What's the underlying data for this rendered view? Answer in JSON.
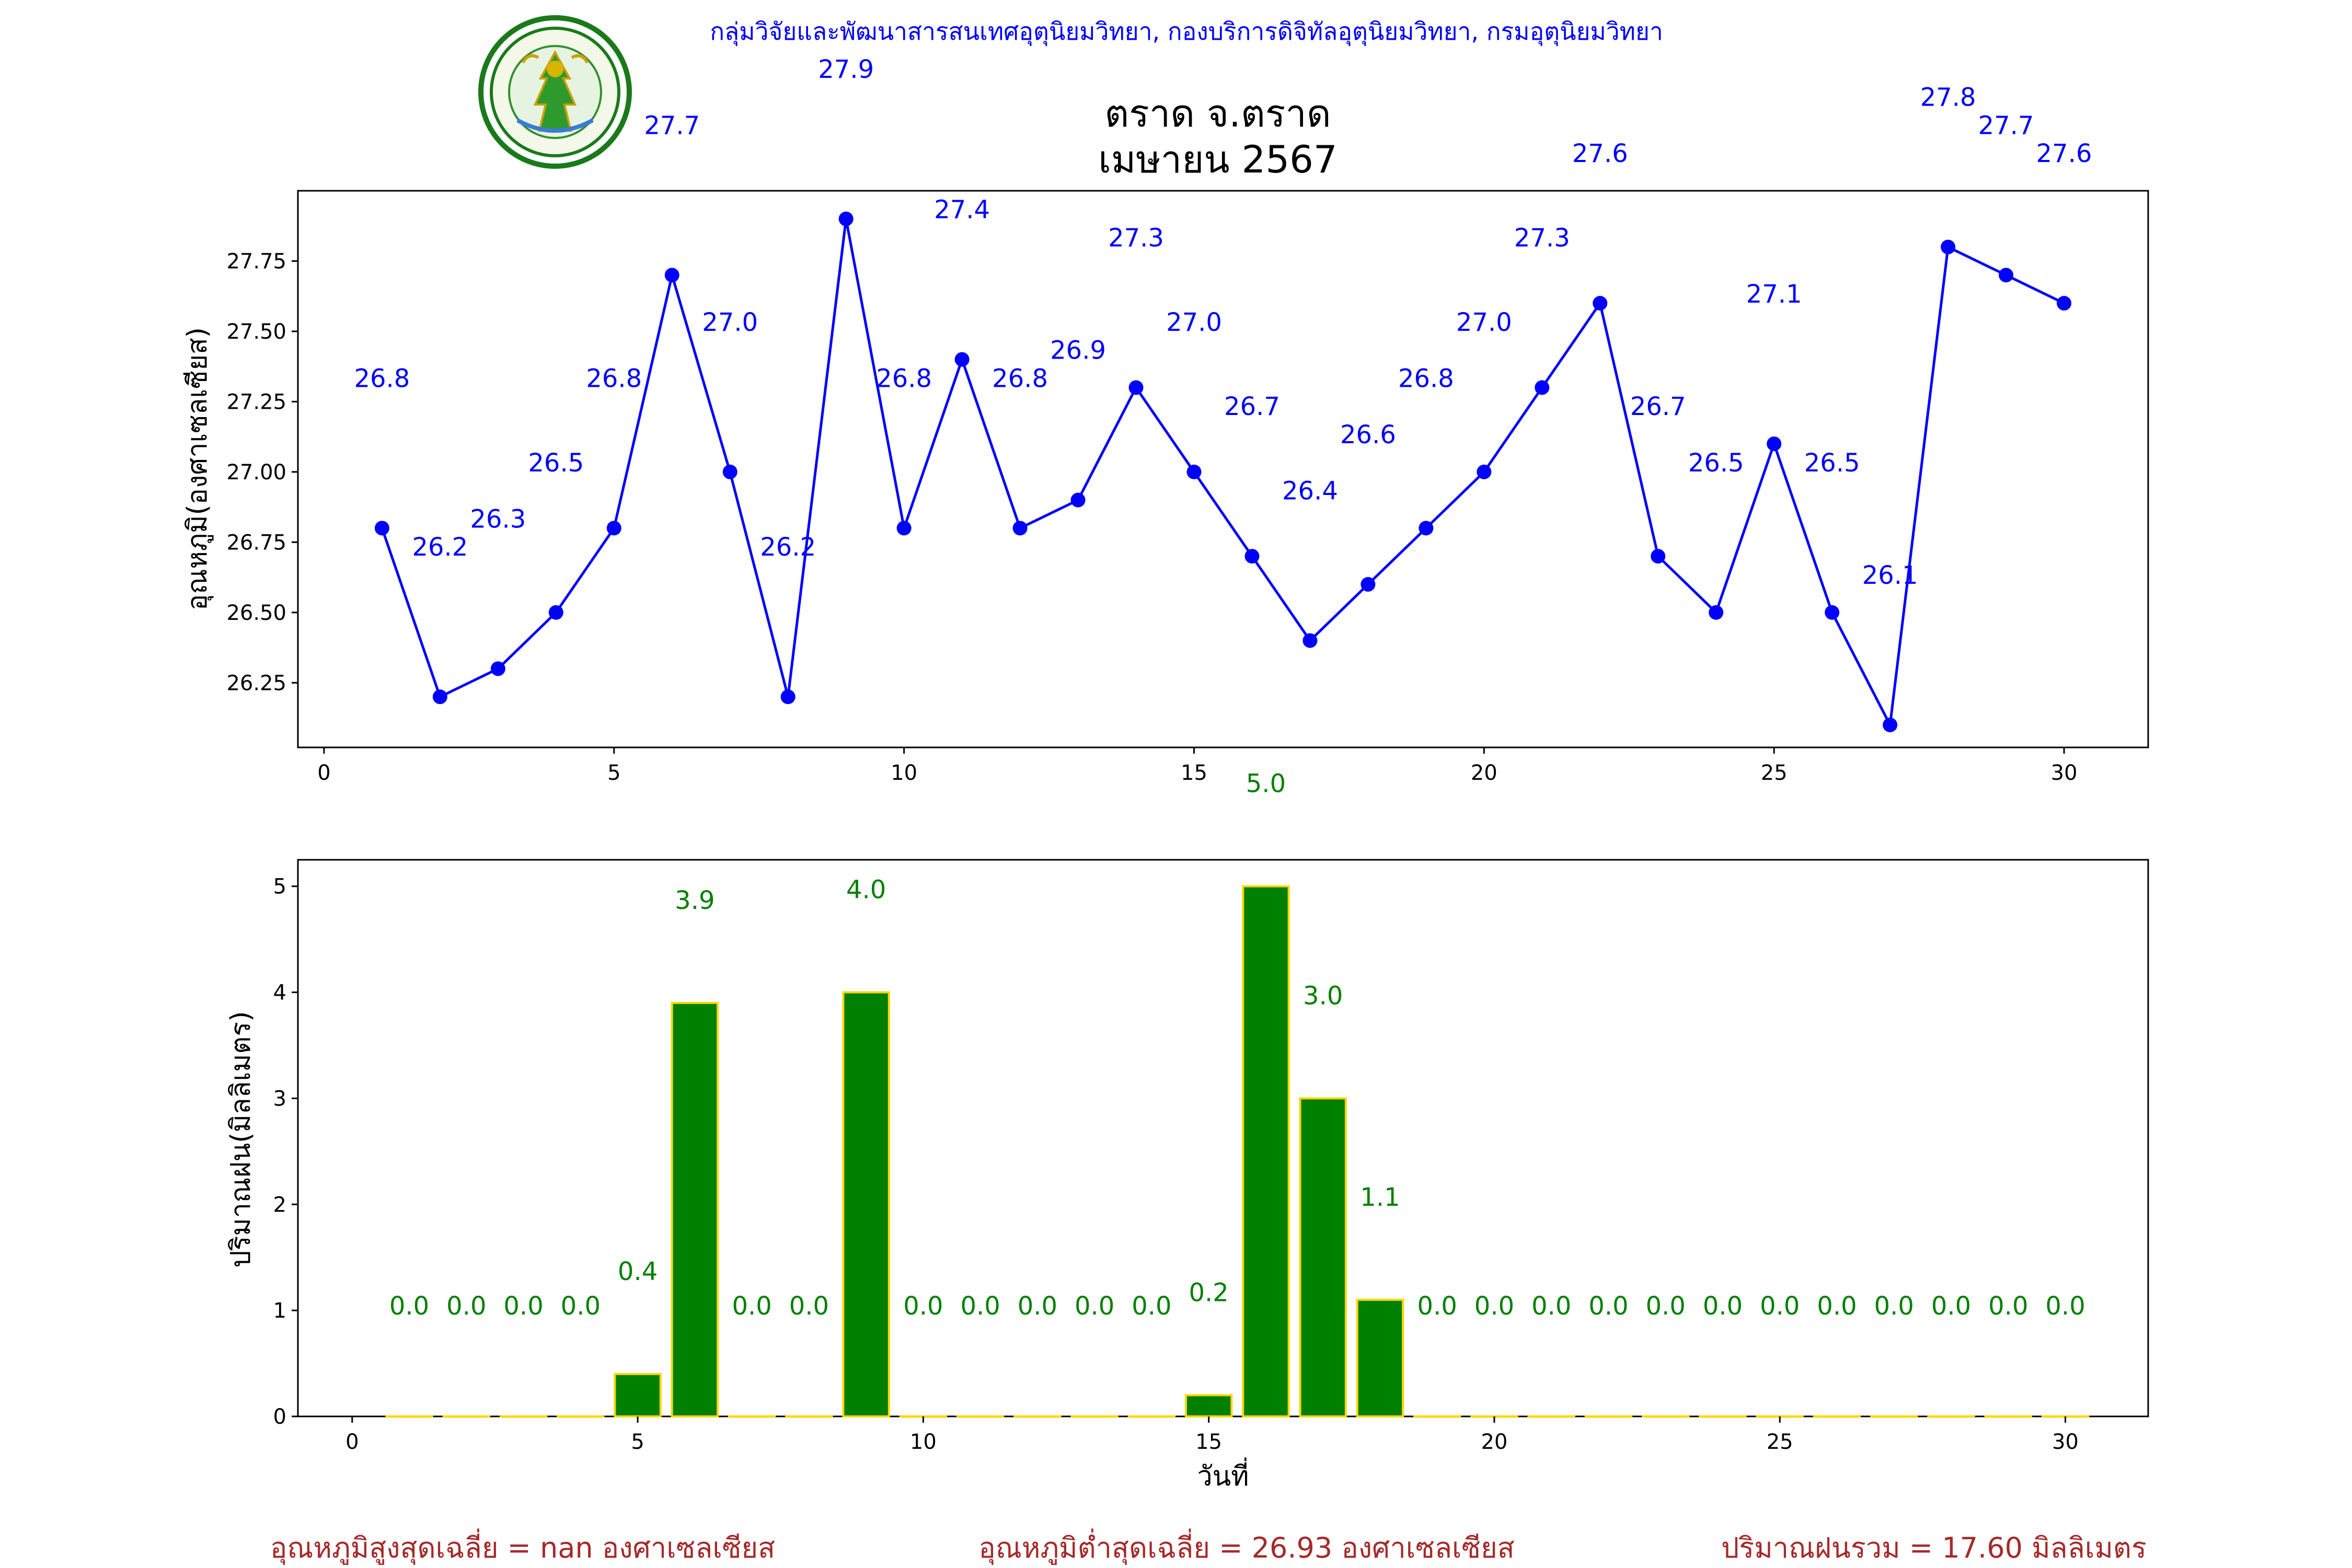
{
  "header": {
    "agency": "กลุ่มวิจัยและพัฒนาสารสนเทศอุตุนิยมวิทยา, กองบริการดิจิทัลอุตุนิยมวิทยา, กรมอุตุนิยมวิทยา",
    "logo_text": "กรมอุตุนิยมวิทยา METEOROLOGICAL DEPARTMENT"
  },
  "colors": {
    "temp_line": "#0000ff",
    "rain_bar": "#008000",
    "rain_bar_edge": "#ffd700",
    "footer": "#a52a2a"
  },
  "chart_data": [
    {
      "type": "line",
      "title": "ตราด จ.ตราด",
      "subtitle": "เมษายน 2567",
      "ylabel": "อุณหภูมิ(องศาเซลเซียส)",
      "xlabel": "",
      "x": [
        1,
        2,
        3,
        4,
        5,
        6,
        7,
        8,
        9,
        10,
        11,
        12,
        13,
        14,
        15,
        16,
        17,
        18,
        19,
        20,
        21,
        22,
        23,
        24,
        25,
        26,
        27,
        28,
        29,
        30
      ],
      "series": [
        {
          "values": [
            26.8,
            26.2,
            26.3,
            26.5,
            26.8,
            27.7,
            27.0,
            26.2,
            27.9,
            26.8,
            27.4,
            26.8,
            26.9,
            27.3,
            27.0,
            26.7,
            26.4,
            26.6,
            26.8,
            27.0,
            27.3,
            27.6,
            26.7,
            26.5,
            27.1,
            26.5,
            26.1,
            27.8,
            27.7,
            27.6
          ]
        }
      ],
      "xlim": [
        -0.45,
        31.45
      ],
      "ylim": [
        26.02,
        28.0
      ],
      "xticks": [
        0,
        5,
        10,
        15,
        20,
        25,
        30
      ],
      "yticks": [
        26.25,
        26.5,
        26.75,
        27.0,
        27.25,
        27.5,
        27.75
      ],
      "ytick_labels": [
        "26.25",
        "26.50",
        "26.75",
        "27.00",
        "27.25",
        "27.50",
        "27.75"
      ],
      "data_labels": [
        "26.8",
        "26.2",
        "26.3",
        "26.5",
        "26.8",
        "27.7",
        "27.0",
        "26.2",
        "27.9",
        "26.8",
        "27.4",
        "26.8",
        "26.9",
        "27.3",
        "27.0",
        "26.7",
        "26.4",
        "26.6",
        "26.8",
        "27.0",
        "27.3",
        "27.6",
        "26.7",
        "26.5",
        "27.1",
        "26.5",
        "26.1",
        "27.8",
        "27.7",
        "27.6"
      ],
      "grid": false
    },
    {
      "type": "bar",
      "ylabel": "ปริมาณฝน(มิลลิเมตร)",
      "xlabel": "วันที่",
      "x": [
        1,
        2,
        3,
        4,
        5,
        6,
        7,
        8,
        9,
        10,
        11,
        12,
        13,
        14,
        15,
        16,
        17,
        18,
        19,
        20,
        21,
        22,
        23,
        24,
        25,
        26,
        27,
        28,
        29,
        30
      ],
      "values": [
        0.0,
        0.0,
        0.0,
        0.0,
        0.4,
        3.9,
        0.0,
        0.0,
        4.0,
        0.0,
        0.0,
        0.0,
        0.0,
        0.0,
        0.2,
        5.0,
        3.0,
        1.1,
        0.0,
        0.0,
        0.0,
        0.0,
        0.0,
        0.0,
        0.0,
        0.0,
        0.0,
        0.0,
        0.0,
        0.0
      ],
      "data_labels": [
        "0.0",
        "0.0",
        "0.0",
        "0.0",
        "0.4",
        "3.9",
        "0.0",
        "0.0",
        "4.0",
        "0.0",
        "0.0",
        "0.0",
        "0.0",
        "0.0",
        "0.2",
        "5.0",
        "3.0",
        "1.1",
        "0.0",
        "0.0",
        "0.0",
        "0.0",
        "0.0",
        "0.0",
        "0.0",
        "0.0",
        "0.0",
        "0.0",
        "0.0",
        "0.0"
      ],
      "xlim": [
        -0.95,
        31.45
      ],
      "ylim": [
        0,
        5.25
      ],
      "xticks": [
        0,
        5,
        10,
        15,
        20,
        25,
        30
      ],
      "yticks": [
        0,
        1,
        2,
        3,
        4,
        5
      ],
      "grid": false
    }
  ],
  "footer": {
    "avg_max": "อุณหภูมิสูงสุดเฉลี่ย = nan องศาเซลเซียส",
    "avg_min": "อุณหภูมิต่ำสุดเฉลี่ย = 26.93 องศาเซลเซียส",
    "total_rain": "ปริมาณฝนรวม = 17.60 มิลลิเมตร"
  }
}
